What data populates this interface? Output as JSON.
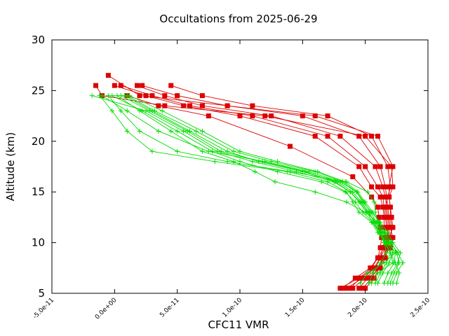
{
  "chart_data": {
    "type": "line",
    "title": "Occultations from 2025-06-29",
    "xlabel": "CFC11 VMR",
    "ylabel": "Altitude (km)",
    "xlim": [
      -5e-11,
      2.5e-10
    ],
    "ylim": [
      5,
      30
    ],
    "x_ticks": [
      -5e-11,
      0,
      5e-11,
      1e-10,
      1.5e-10,
      2e-10,
      2.5e-10
    ],
    "x_tick_labels": [
      "-5.0e-11",
      "0.0e+00",
      "5.0e-11",
      "1.0e-10",
      "1.5e-10",
      "2.0e-10",
      "2.5e-10"
    ],
    "y_ticks": [
      5,
      10,
      15,
      20,
      25,
      30
    ],
    "y_tick_labels": [
      "5",
      "10",
      "15",
      "20",
      "25",
      "30"
    ],
    "grid": false,
    "legend": "none",
    "colors": {
      "green": "#00dd00",
      "red": "#dd0000"
    },
    "series": [
      {
        "color": "green",
        "marker": "plus",
        "x": [
          2.03e-10,
          2.06e-10,
          2.12e-10,
          2.17e-10,
          2.15e-10,
          2.12e-10,
          2.1e-10,
          2.08e-10,
          2.07e-10,
          2.02e-10,
          1.85e-10,
          1.4e-10,
          9e-11,
          5e-11,
          2e-11,
          5e-12,
          -5e-12
        ],
        "y": [
          6,
          7,
          8,
          9,
          10,
          11,
          12,
          13,
          14,
          15,
          16,
          17,
          18,
          19,
          21,
          23,
          24.5
        ]
      },
      {
        "color": "green",
        "marker": "plus",
        "x": [
          2.18e-10,
          2.21e-10,
          2.26e-10,
          2.28e-10,
          2.22e-10,
          2.18e-10,
          2.12e-10,
          2.05e-10,
          1.98e-10,
          1.93e-10,
          1.8e-10,
          1.55e-10,
          1.2e-10,
          7.5e-11,
          3.5e-11,
          1e-11,
          -1e-11
        ],
        "y": [
          6,
          7,
          8,
          9,
          10,
          11,
          12,
          13,
          14,
          15,
          16,
          17,
          18,
          19,
          21,
          23,
          24.5
        ]
      },
      {
        "color": "green",
        "marker": "plus",
        "x": [
          2.05e-10,
          2.1e-10,
          2.22e-10,
          2.2e-10,
          2.15e-10,
          2.1e-10,
          2.05e-10,
          1.95e-10,
          1.9e-10,
          1.85e-10,
          1.7e-10,
          1.38e-10,
          8e-11,
          3e-11,
          1e-11,
          -2e-12,
          -1.2e-11
        ],
        "y": [
          6,
          7,
          8,
          9,
          10,
          11,
          12,
          13,
          14,
          15,
          16,
          17,
          18,
          19,
          21,
          23,
          24.5
        ]
      },
      {
        "color": "green",
        "marker": "plus",
        "x": [
          2.22e-10,
          2.25e-10,
          2.3e-10,
          2.26e-10,
          2.2e-10,
          2.15e-10,
          2.1e-10,
          2e-10,
          1.85e-10,
          1.6e-10,
          1.28e-10,
          1.12e-10,
          9.5e-11,
          7e-11,
          4.5e-11,
          2e-11,
          2e-12
        ],
        "y": [
          6,
          7,
          8,
          9,
          10,
          11,
          12,
          13,
          14,
          15,
          16,
          17,
          18,
          19,
          21,
          23,
          24.5
        ]
      },
      {
        "color": "green",
        "marker": "plus",
        "x": [
          1.96e-10,
          2.02e-10,
          2.15e-10,
          2.24e-10,
          2.18e-10,
          2.13e-10,
          2.08e-10,
          2.02e-10,
          1.96e-10,
          1.88e-10,
          1.75e-10,
          1.45e-10,
          1.1e-10,
          8.2e-11,
          5.5e-11,
          2.5e-11,
          -1.8e-11
        ],
        "y": [
          6,
          7,
          8,
          9,
          10,
          11,
          12,
          13,
          14,
          15,
          16,
          17,
          18,
          19,
          21,
          23,
          24.5
        ]
      },
      {
        "color": "green",
        "marker": "plus",
        "x": [
          2.25e-10,
          2.27e-10,
          2.24e-10,
          2.2e-10,
          2.16e-10,
          2.12e-10,
          2.06e-10,
          1.98e-10,
          1.92e-10,
          1.84e-10,
          1.65e-10,
          1.3e-10,
          1e-10,
          7.8e-11,
          5e-11,
          2.2e-11,
          -2e-12
        ],
        "y": [
          6,
          7,
          8,
          9,
          10,
          11,
          12,
          13,
          14,
          15,
          16,
          17,
          18,
          19,
          21,
          23,
          24.5
        ]
      },
      {
        "color": "green",
        "marker": "plus",
        "x": [
          2.1e-10,
          2.14e-10,
          2.19e-10,
          2.22e-10,
          2.17e-10,
          2.12e-10,
          2.07e-10,
          2.03e-10,
          1.97e-10,
          1.9e-10,
          1.78e-10,
          1.5e-10,
          1.15e-10,
          9e-11,
          6e-11,
          3e-11,
          8e-12
        ],
        "y": [
          6,
          7,
          8,
          9,
          10,
          11,
          12,
          13,
          14,
          15,
          16,
          17,
          18,
          19,
          21,
          23,
          24.5
        ]
      },
      {
        "color": "green",
        "marker": "plus",
        "x": [
          2.15e-10,
          2.18e-10,
          2.23e-10,
          2.24e-10,
          2.19e-10,
          2.14e-10,
          2.09e-10,
          2.04e-10,
          1.99e-10,
          1.93e-10,
          1.82e-10,
          1.6e-10,
          1.25e-10,
          9.5e-11,
          6.5e-11,
          3.2e-11,
          1e-11
        ],
        "y": [
          6,
          7,
          8,
          9,
          10,
          11,
          12,
          13,
          14,
          15,
          16,
          17,
          18,
          19,
          21,
          23,
          24.5
        ]
      },
      {
        "color": "green",
        "marker": "plus",
        "x": [
          2.08e-10,
          2.12e-10,
          2.17e-10,
          2.2e-10,
          2.16e-10,
          2.11e-10,
          2.06e-10,
          2.01e-10,
          1.95e-10,
          1.88e-10,
          1.76e-10,
          1.52e-10,
          1.18e-10,
          8.5e-11,
          5.8e-11,
          2.8e-11,
          5e-12
        ],
        "y": [
          6,
          7,
          8,
          9,
          10,
          11,
          12,
          13,
          14,
          15,
          16,
          17,
          18,
          19,
          21,
          23,
          24.5
        ]
      },
      {
        "color": "green",
        "marker": "plus",
        "x": [
          2.2e-10,
          2.23e-10,
          2.27e-10,
          2.25e-10,
          2.21e-10,
          2.16e-10,
          2.11e-10,
          2.06e-10,
          2e-10,
          1.94e-10,
          1.84e-10,
          1.62e-10,
          1.3e-10,
          1e-10,
          7e-11,
          3.8e-11,
          1.2e-11
        ],
        "y": [
          6,
          7,
          8,
          9,
          10,
          11,
          12,
          13,
          14,
          15,
          16,
          17,
          18,
          19,
          21,
          23,
          24.5
        ]
      },
      {
        "color": "red",
        "marker": "square",
        "x": [
          1.8e-10,
          1.95e-10,
          2.05e-10,
          2.1e-10,
          2.12e-10,
          2.13e-10,
          2.12e-10,
          2.11e-10,
          2.1e-10,
          2.05e-10,
          1.9e-10,
          1.4e-10,
          7.5e-11,
          3.5e-11,
          1e-11
        ],
        "y": [
          5.5,
          6.5,
          7.5,
          8.5,
          9.5,
          10.5,
          11.5,
          12.5,
          13.5,
          14.5,
          16.5,
          19.5,
          22.5,
          23.5,
          24.5
        ]
      },
      {
        "color": "red",
        "marker": "square",
        "x": [
          1.85e-10,
          1.98e-10,
          2.08e-10,
          2.12e-10,
          2.14e-10,
          2.16e-10,
          2.15e-10,
          2.15e-10,
          2.14e-10,
          2.12e-10,
          2.05e-10,
          1.95e-10,
          1.6e-10,
          1e-10,
          5.5e-11,
          2.5e-11,
          0.0
        ],
        "y": [
          5.5,
          6.5,
          7.5,
          8.5,
          9.5,
          10.5,
          11.5,
          12.5,
          13.5,
          14.5,
          15.5,
          17.5,
          20.5,
          22.5,
          23.5,
          24.5,
          25.5
        ]
      },
      {
        "color": "red",
        "marker": "square",
        "x": [
          1.9e-10,
          2e-10,
          2.1e-10,
          2.15e-10,
          2.17e-10,
          2.18e-10,
          2.17e-10,
          2.16e-10,
          2.15e-10,
          2.14e-10,
          2.1e-10,
          2e-10,
          1.7e-10,
          1.1e-10,
          6e-11,
          3e-11,
          5e-12
        ],
        "y": [
          5.5,
          6.5,
          7.5,
          8.5,
          9.5,
          10.5,
          11.5,
          12.5,
          13.5,
          14.5,
          15.5,
          17.5,
          20.5,
          22.5,
          23.5,
          24.5,
          25.5
        ]
      },
      {
        "color": "red",
        "marker": "square",
        "x": [
          1.95e-10,
          2.02e-10,
          2.12e-10,
          2.16e-10,
          2.18e-10,
          2.19e-10,
          2.19e-10,
          2.18e-10,
          2.17e-10,
          2.16e-10,
          2.14e-10,
          2.08e-10,
          1.8e-10,
          1.25e-10,
          7e-11,
          4e-11,
          1.8e-11
        ],
        "y": [
          5.5,
          6.5,
          7.5,
          8.5,
          9.5,
          10.5,
          11.5,
          12.5,
          13.5,
          14.5,
          15.5,
          17.5,
          20.5,
          22.5,
          23.5,
          24.5,
          25.5
        ]
      },
      {
        "color": "red",
        "marker": "square",
        "x": [
          1.98e-10,
          2.05e-10,
          2.1e-10,
          2.14e-10,
          2.2e-10,
          2.22e-10,
          2.2e-10,
          2.19e-10,
          2.18e-10,
          2.17e-10,
          2.16e-10,
          2.12e-10,
          1.95e-10,
          1.5e-10,
          9e-11,
          5e-11,
          2.2e-11
        ],
        "y": [
          5.5,
          6.5,
          7.5,
          8.5,
          9.5,
          10.5,
          11.5,
          12.5,
          13.5,
          14.5,
          15.5,
          17.5,
          20.5,
          22.5,
          23.5,
          24.5,
          25.5
        ]
      },
      {
        "color": "red",
        "marker": "square",
        "x": [
          2e-10,
          2.07e-10,
          2.11e-10,
          2.15e-10,
          2.16e-10,
          2.17e-10,
          2.18e-10,
          2.17e-10,
          2.16e-10,
          2.18e-10,
          2.2e-10,
          2.18e-10,
          2.05e-10,
          1.7e-10,
          1.1e-10,
          7e-11,
          4.5e-11
        ],
        "y": [
          5.5,
          6.5,
          7.5,
          8.5,
          9.5,
          10.5,
          11.5,
          12.5,
          13.5,
          14.5,
          15.5,
          17.5,
          20.5,
          22.5,
          23.5,
          24.5,
          25.5
        ]
      },
      {
        "color": "red",
        "marker": "square",
        "x": [
          1.82e-10,
          1.92e-10,
          2.04e-10,
          2.1e-10,
          2.15e-10,
          2.19e-10,
          2.22e-10,
          2.21e-10,
          2.2e-10,
          2.19e-10,
          2.22e-10,
          2.21e-10,
          2e-10,
          1.2e-10,
          4e-11,
          -1e-11,
          -1.5e-11
        ],
        "y": [
          5.5,
          6.5,
          7.5,
          8.5,
          9.5,
          10.5,
          11.5,
          12.5,
          13.5,
          14.5,
          15.5,
          17.5,
          20.5,
          22.5,
          23.5,
          24.5,
          25.5
        ]
      },
      {
        "color": "red",
        "marker": "square",
        "x": [
          1.88e-10,
          1.96e-10,
          2.07e-10,
          2.12e-10,
          2.16e-10,
          2.2e-10,
          2.21e-10,
          2.2e-10,
          2.2e-10,
          2.19e-10,
          2.19e-10,
          2.22e-10,
          2.1e-10,
          1.6e-10,
          9e-11,
          2e-11,
          -5e-12
        ],
        "y": [
          5.5,
          6.5,
          7.5,
          8.5,
          9.5,
          10.5,
          11.5,
          12.5,
          13.5,
          14.5,
          15.5,
          17.5,
          20.5,
          22.5,
          23.5,
          24.5,
          26.5
        ]
      }
    ]
  }
}
